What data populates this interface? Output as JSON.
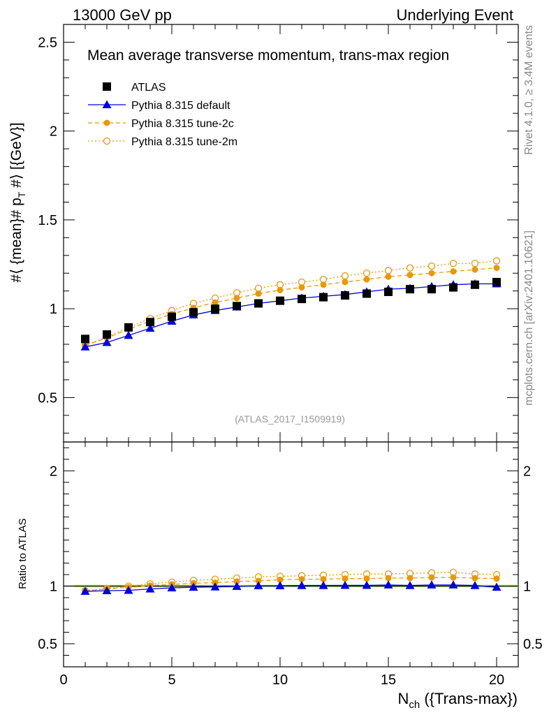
{
  "header": {
    "left": "13000 GeV pp",
    "right": "Underlying Event"
  },
  "side_labels": {
    "rivet": "Rivet 4.1.0, ≥ 3.4M events",
    "mcplots": "mcplots.cern.ch [arXiv:2401.10621]"
  },
  "colors": {
    "atlas": "#000000",
    "default": "#0000dd",
    "tune2c": "#e8980a",
    "tune2m": "#e8980a",
    "band": "#b5f36e"
  },
  "chart_data": [
    {
      "type": "scatter",
      "title": "Mean average transverse momentum, trans-max region",
      "annotation": "(ATLAS_2017_I1509919)",
      "ylabel": "#⟨ {mean}# p_T #⟩ [{GeV}]",
      "ylabel_parts": {
        "pre": "#⟨ {mean}# p",
        "sub": "T",
        "post": " #⟩ [{GeV}]"
      },
      "xlim": [
        0,
        21
      ],
      "ylim": [
        0.25,
        2.6
      ],
      "yticks": [
        "0.5",
        "1",
        "1.5",
        "2",
        "2.5"
      ],
      "legend_position": "top-left",
      "series": [
        {
          "name": "ATLAS",
          "x": [
            1,
            2,
            3,
            4,
            5,
            6,
            7,
            8,
            9,
            10,
            11,
            12,
            13,
            14,
            15,
            16,
            17,
            18,
            19,
            20
          ],
          "values": [
            0.83,
            0.855,
            0.895,
            0.925,
            0.955,
            0.98,
            1.0,
            1.015,
            1.03,
            1.045,
            1.055,
            1.065,
            1.075,
            1.085,
            1.095,
            1.11,
            1.11,
            1.12,
            1.135,
            1.15
          ]
        },
        {
          "name": "Pythia 8.315 default",
          "x": [
            1,
            2,
            3,
            4,
            5,
            6,
            7,
            8,
            9,
            10,
            11,
            12,
            13,
            14,
            15,
            16,
            17,
            18,
            19,
            20
          ],
          "values": [
            0.785,
            0.81,
            0.85,
            0.89,
            0.93,
            0.965,
            0.99,
            1.01,
            1.03,
            1.045,
            1.06,
            1.07,
            1.08,
            1.095,
            1.11,
            1.115,
            1.125,
            1.135,
            1.14,
            1.14
          ]
        },
        {
          "name": "Pythia 8.315 tune-2c",
          "x": [
            1,
            2,
            3,
            4,
            5,
            6,
            7,
            8,
            9,
            10,
            11,
            12,
            13,
            14,
            15,
            16,
            17,
            18,
            19,
            20
          ],
          "values": [
            0.795,
            0.835,
            0.885,
            0.93,
            0.97,
            1.005,
            1.035,
            1.06,
            1.085,
            1.105,
            1.12,
            1.135,
            1.15,
            1.165,
            1.18,
            1.19,
            1.2,
            1.21,
            1.22,
            1.23
          ]
        },
        {
          "name": "Pythia 8.315 tune-2m",
          "x": [
            1,
            2,
            3,
            4,
            5,
            6,
            7,
            8,
            9,
            10,
            11,
            12,
            13,
            14,
            15,
            16,
            17,
            18,
            19,
            20
          ],
          "values": [
            0.795,
            0.84,
            0.895,
            0.945,
            0.99,
            1.03,
            1.06,
            1.09,
            1.115,
            1.135,
            1.15,
            1.165,
            1.185,
            1.2,
            1.215,
            1.23,
            1.24,
            1.255,
            1.255,
            1.27
          ]
        }
      ]
    },
    {
      "type": "scatter",
      "xlabel": "N",
      "xlabel_sub": "ch",
      "xlabel_post": " ({Trans-max})",
      "ylabel": "Ratio to ATLAS",
      "xlim": [
        0,
        21
      ],
      "ylim": [
        0.3,
        2.25
      ],
      "xticks": [
        "0",
        "5",
        "10",
        "15",
        "20"
      ],
      "yticks": [
        "0.5",
        "1",
        "2"
      ],
      "series": [
        {
          "name": "Pythia 8.315 default",
          "x": [
            1,
            2,
            3,
            4,
            5,
            6,
            7,
            8,
            9,
            10,
            11,
            12,
            13,
            14,
            15,
            16,
            17,
            18,
            19,
            20
          ],
          "values": [
            0.955,
            0.96,
            0.963,
            0.975,
            0.985,
            0.99,
            0.993,
            0.997,
            1.003,
            1.003,
            1.005,
            1.005,
            1.006,
            1.006,
            1.01,
            1.005,
            1.01,
            1.01,
            1.005,
            0.99
          ]
        },
        {
          "name": "Pythia 8.315 tune-2c",
          "x": [
            1,
            2,
            3,
            4,
            5,
            6,
            7,
            8,
            9,
            10,
            11,
            12,
            13,
            14,
            15,
            16,
            17,
            18,
            19,
            20
          ],
          "values": [
            0.96,
            0.975,
            0.99,
            1.005,
            1.015,
            1.025,
            1.03,
            1.04,
            1.045,
            1.055,
            1.06,
            1.06,
            1.065,
            1.065,
            1.07,
            1.07,
            1.075,
            1.075,
            1.07,
            1.065
          ]
        },
        {
          "name": "Pythia 8.315 tune-2m",
          "x": [
            1,
            2,
            3,
            4,
            5,
            6,
            7,
            8,
            9,
            10,
            11,
            12,
            13,
            14,
            15,
            16,
            17,
            18,
            19,
            20
          ],
          "values": [
            0.96,
            0.98,
            1.0,
            1.02,
            1.035,
            1.05,
            1.06,
            1.07,
            1.08,
            1.085,
            1.09,
            1.095,
            1.1,
            1.105,
            1.105,
            1.11,
            1.115,
            1.12,
            1.105,
            1.1
          ]
        }
      ]
    }
  ]
}
